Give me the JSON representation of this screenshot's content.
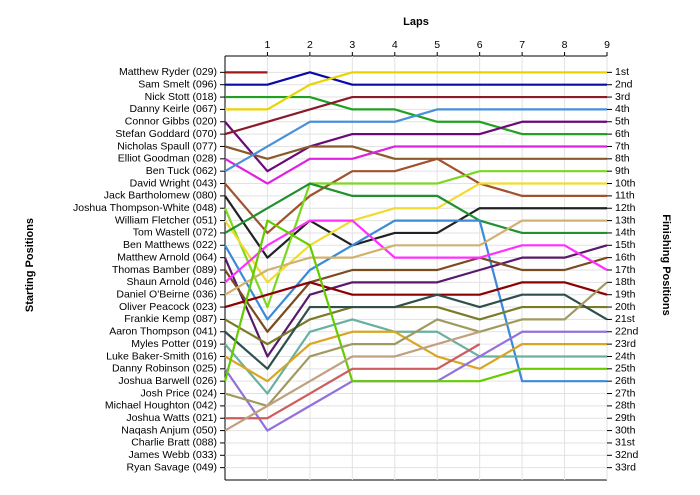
{
  "chart_data": {
    "type": "line",
    "x_label": "Laps",
    "y_label": "Starting Positions",
    "y2_label": "Finishing Positions",
    "x": [
      0,
      1,
      2,
      3,
      4,
      5,
      6,
      7,
      8,
      9
    ],
    "xlim": [
      0,
      9
    ],
    "xticks": [
      1,
      2,
      3,
      4,
      5,
      6,
      7,
      8,
      9
    ],
    "ylim": [
      0,
      34
    ],
    "y_inverted": true,
    "grid": true,
    "y2ticks": [
      {
        "value": 1,
        "label": "1st"
      },
      {
        "value": 2,
        "label": "2nd"
      },
      {
        "value": 3,
        "label": "3rd"
      },
      {
        "value": 4,
        "label": "4th"
      },
      {
        "value": 5,
        "label": "5th"
      },
      {
        "value": 6,
        "label": "6th"
      },
      {
        "value": 7,
        "label": "7th"
      },
      {
        "value": 8,
        "label": "8th"
      },
      {
        "value": 9,
        "label": "9th"
      },
      {
        "value": 10,
        "label": "10th"
      },
      {
        "value": 11,
        "label": "11th"
      },
      {
        "value": 12,
        "label": "12th"
      },
      {
        "value": 13,
        "label": "13th"
      },
      {
        "value": 14,
        "label": "14th"
      },
      {
        "value": 15,
        "label": "15th"
      },
      {
        "value": 16,
        "label": "16th"
      },
      {
        "value": 17,
        "label": "17th"
      },
      {
        "value": 18,
        "label": "18th"
      },
      {
        "value": 19,
        "label": "19th"
      },
      {
        "value": 20,
        "label": "20th"
      },
      {
        "value": 21,
        "label": "21st"
      },
      {
        "value": 22,
        "label": "22nd"
      },
      {
        "value": 23,
        "label": "23rd"
      },
      {
        "value": 24,
        "label": "24th"
      },
      {
        "value": 25,
        "label": "25th"
      },
      {
        "value": 26,
        "label": "26th"
      },
      {
        "value": 27,
        "label": "27th"
      },
      {
        "value": 28,
        "label": "28th"
      },
      {
        "value": 29,
        "label": "29th"
      },
      {
        "value": 30,
        "label": "30th"
      },
      {
        "value": 31,
        "label": "31st"
      },
      {
        "value": 32,
        "label": "32nd"
      },
      {
        "value": 33,
        "label": "33rd"
      }
    ],
    "series": [
      {
        "name": "Matthew Ryder (029)",
        "color": "#a01818",
        "values": [
          1,
          1,
          null,
          null,
          null,
          null,
          null,
          null,
          null,
          null
        ]
      },
      {
        "name": "Sam Smelt (096)",
        "color": "#0a0aa8",
        "values": [
          2,
          2,
          1,
          2,
          2,
          2,
          2,
          2,
          2,
          2
        ]
      },
      {
        "name": "Nick Stott (018)",
        "color": "#22a022",
        "values": [
          3,
          3,
          3,
          4,
          4,
          5,
          5,
          6,
          6,
          6
        ]
      },
      {
        "name": "Danny Keirle (067)",
        "color": "#e8d400",
        "values": [
          4,
          4,
          2,
          1,
          1,
          1,
          1,
          1,
          1,
          1
        ]
      },
      {
        "name": "Connor Gibbs (020)",
        "color": "#6a0a78",
        "values": [
          5,
          9,
          7,
          6,
          6,
          6,
          6,
          5,
          5,
          5
        ]
      },
      {
        "name": "Stefan Goddard (070)",
        "color": "#8b1a2a",
        "values": [
          6,
          5,
          4,
          3,
          3,
          3,
          3,
          3,
          3,
          3
        ]
      },
      {
        "name": "Nicholas Spaull (077)",
        "color": "#8b5a2b",
        "values": [
          7,
          8,
          7,
          7,
          8,
          8,
          8,
          8,
          8,
          8
        ]
      },
      {
        "name": "Elliot Goodman (028)",
        "color": "#e020e0",
        "values": [
          8,
          10,
          8,
          8,
          7,
          7,
          7,
          7,
          7,
          7
        ]
      },
      {
        "name": "Ben Tuck (062)",
        "color": "#4a90d9",
        "values": [
          9,
          7,
          5,
          5,
          5,
          4,
          4,
          4,
          4,
          4
        ]
      },
      {
        "name": "David Wright (043)",
        "color": "#a0522d",
        "values": [
          10,
          14,
          11,
          9,
          9,
          8,
          10,
          11,
          11,
          11
        ]
      },
      {
        "name": "Jack Bartholomew (080)",
        "color": "#222222",
        "values": [
          11,
          16,
          13,
          15,
          14,
          14,
          12,
          12,
          12,
          12
        ]
      },
      {
        "name": "Joshua Thompson-White (048)",
        "color": "#7ad820",
        "values": [
          12,
          20,
          10,
          10,
          10,
          10,
          9,
          9,
          9,
          9
        ]
      },
      {
        "name": "William Fletcher (051)",
        "color": "#f0dc30",
        "values": [
          13,
          18,
          15,
          13,
          12,
          12,
          10,
          10,
          10,
          10
        ]
      },
      {
        "name": "Tom Wastell (072)",
        "color": "#209030",
        "values": [
          14,
          12,
          10,
          11,
          11,
          11,
          13,
          14,
          14,
          14
        ]
      },
      {
        "name": "Ben Matthews (022)",
        "color": "#3a8ad8",
        "values": [
          15,
          21,
          17,
          15,
          13,
          13,
          13,
          26,
          26,
          26
        ]
      },
      {
        "name": "Matthew Arnold (064)",
        "color": "#5a1a6a",
        "values": [
          16,
          24,
          19,
          18,
          18,
          18,
          17,
          16,
          16,
          15
        ]
      },
      {
        "name": "Thomas Bamber (089)",
        "color": "#7a4a20",
        "values": [
          17,
          22,
          18,
          17,
          17,
          17,
          16,
          17,
          17,
          16
        ]
      },
      {
        "name": "Shaun Arnold (046)",
        "color": "#ff30ff",
        "values": [
          18,
          15,
          13,
          13,
          16,
          16,
          16,
          15,
          15,
          17
        ]
      },
      {
        "name": "Daniel O'Beirne (036)",
        "color": "#d2b070",
        "values": [
          19,
          17,
          16,
          16,
          15,
          15,
          15,
          13,
          13,
          13
        ]
      },
      {
        "name": "Oliver Peacock (023)",
        "color": "#8b0000",
        "values": [
          20,
          19,
          18,
          19,
          19,
          19,
          19,
          18,
          18,
          19
        ]
      },
      {
        "name": "Frankie Kemp (087)",
        "color": "#7a7a2a",
        "values": [
          21,
          23,
          21,
          20,
          20,
          20,
          21,
          20,
          20,
          20
        ]
      },
      {
        "name": "Aaron Thompson (041)",
        "color": "#2f4f4f",
        "values": [
          22,
          25,
          20,
          20,
          20,
          19,
          20,
          19,
          19,
          21
        ]
      },
      {
        "name": "Myles Potter (019)",
        "color": "#6ab0a0",
        "values": [
          23,
          27,
          22,
          21,
          22,
          22,
          24,
          24,
          24,
          24
        ]
      },
      {
        "name": "Luke Baker-Smith (016)",
        "color": "#daa520",
        "values": [
          24,
          26,
          23,
          22,
          22,
          24,
          25,
          23,
          23,
          23
        ]
      },
      {
        "name": "Danny Robinson (025)",
        "color": "#9370db",
        "values": [
          25,
          30,
          28,
          26,
          26,
          26,
          24,
          22,
          22,
          22
        ]
      },
      {
        "name": "Joshua Barwell (026)",
        "color": "#66cc00",
        "values": [
          26,
          13,
          15,
          26,
          26,
          26,
          26,
          25,
          25,
          25
        ]
      },
      {
        "name": "Josh Price (024)",
        "color": "#a09a60",
        "values": [
          27,
          28,
          24,
          23,
          23,
          21,
          22,
          21,
          21,
          18
        ]
      },
      {
        "name": "Michael Houghton (042)",
        "color": "#1e90ff",
        "values": [
          28,
          null,
          null,
          null,
          null,
          null,
          null,
          null,
          null,
          null
        ]
      },
      {
        "name": "Joshua Watts (021)",
        "color": "#cd5c5c",
        "values": [
          29,
          29,
          27,
          25,
          25,
          25,
          23,
          null,
          null,
          null
        ]
      },
      {
        "name": "Naqash Anjum (050)",
        "color": "#c0a080",
        "values": [
          30,
          28,
          26,
          24,
          24,
          23,
          22,
          null,
          null,
          null
        ]
      },
      {
        "name": "Charlie Bratt (088)",
        "color": "#999999",
        "values": [
          31,
          null,
          null,
          null,
          null,
          null,
          null,
          null,
          null,
          null
        ]
      },
      {
        "name": "James Webb (033)",
        "color": "#999999",
        "values": [
          32,
          null,
          null,
          null,
          null,
          null,
          null,
          null,
          null,
          null
        ]
      },
      {
        "name": "Ryan Savage (049)",
        "color": "#999999",
        "values": [
          33,
          null,
          null,
          null,
          null,
          null,
          null,
          null,
          null,
          null
        ]
      }
    ]
  }
}
